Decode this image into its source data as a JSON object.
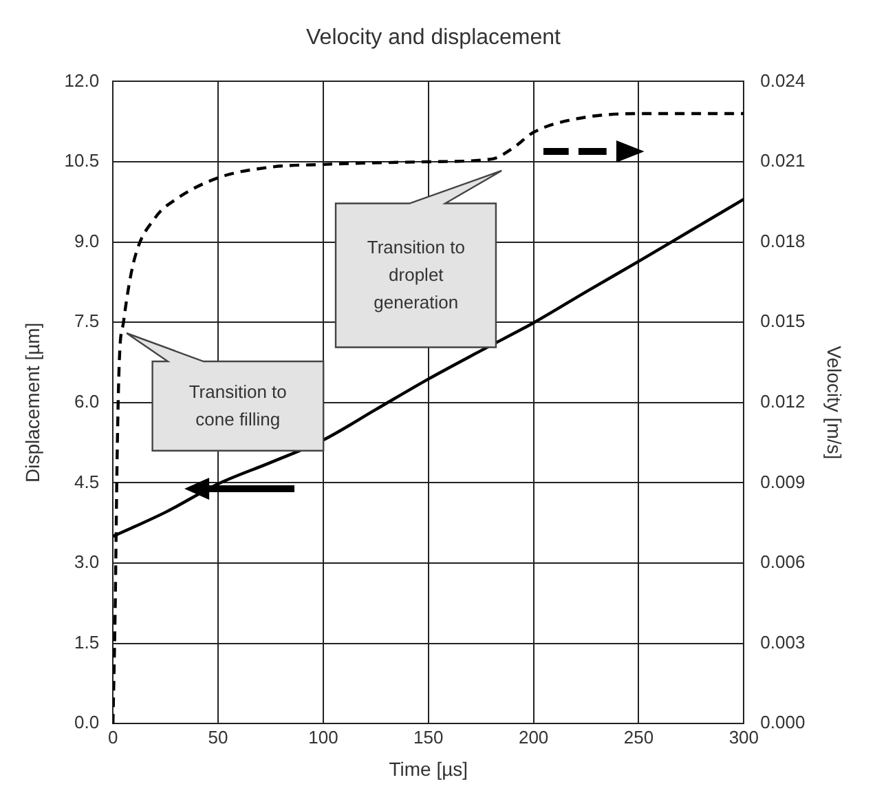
{
  "chart_data": {
    "type": "line",
    "title": "Velocity and displacement",
    "xlabel": "Time [µs]",
    "ylabel": "Displacement [µm]",
    "y2label": "Velocity [m/s]",
    "xlim": [
      0,
      300
    ],
    "xticks": [
      0,
      50,
      100,
      150,
      200,
      250,
      300
    ],
    "ylim": [
      0,
      12
    ],
    "yticks": [
      {
        "value": 0,
        "label": "0.0"
      },
      {
        "value": 1.5,
        "label": "1.5"
      },
      {
        "value": 3,
        "label": "3.0"
      },
      {
        "value": 4.5,
        "label": "4.5"
      },
      {
        "value": 6,
        "label": "6.0"
      },
      {
        "value": 7.5,
        "label": "7.5"
      },
      {
        "value": 9,
        "label": "9.0"
      },
      {
        "value": 10.5,
        "label": "10.5"
      },
      {
        "value": 12,
        "label": "12.0"
      }
    ],
    "y2lim": [
      0,
      0.024
    ],
    "y2ticks": [
      {
        "value": 0,
        "label": "0.000"
      },
      {
        "value": 0.003,
        "label": "0.003"
      },
      {
        "value": 0.006,
        "label": "0.006"
      },
      {
        "value": 0.009,
        "label": "0.009"
      },
      {
        "value": 0.012,
        "label": "0.012"
      },
      {
        "value": 0.015,
        "label": "0.015"
      },
      {
        "value": 0.018,
        "label": "0.018"
      },
      {
        "value": 0.021,
        "label": "0.021"
      },
      {
        "value": 0.024,
        "label": "0.024"
      }
    ],
    "grid": true,
    "legend": false,
    "marker": "none",
    "series": [
      {
        "color": "#000000",
        "line_style": "solid",
        "x": [
          0,
          25,
          50,
          75,
          100,
          125,
          150,
          175,
          200,
          225,
          250,
          275,
          300
        ],
        "values": [
          3.5,
          3.95,
          4.48,
          4.88,
          5.3,
          5.87,
          6.44,
          6.97,
          7.49,
          8.07,
          8.64,
          9.22,
          9.8
        ]
      },
      {
        "color": "#000000",
        "line_style": "dashed",
        "axis": "y2",
        "x": [
          0,
          1,
          2,
          3,
          5,
          10,
          20,
          30,
          50,
          75,
          100,
          150,
          180,
          190,
          200,
          220,
          250,
          300
        ],
        "values": [
          0,
          0.004,
          0.01,
          0.0135,
          0.015,
          0.0173,
          0.0189,
          0.0196,
          0.0204,
          0.0208,
          0.0209,
          0.021,
          0.0211,
          0.0215,
          0.0221,
          0.0226,
          0.0228,
          0.0228
        ]
      }
    ],
    "annotations": [
      "Transition to cone filling",
      "Transition to droplet generation"
    ]
  }
}
